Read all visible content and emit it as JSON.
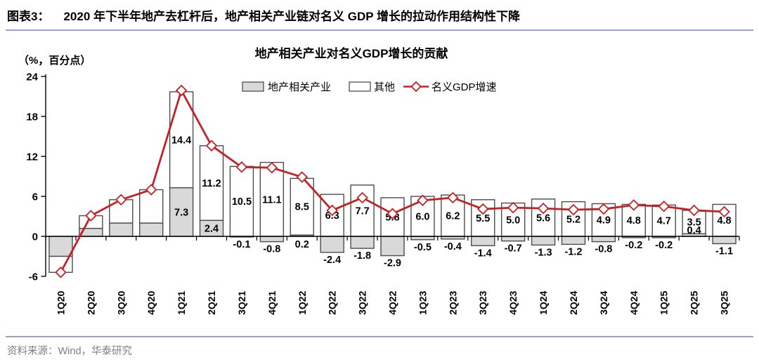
{
  "figure": {
    "label": "图表3：",
    "title": "2020 年下半年地产去杠杆后，地产相关产业链对名义 GDP 增长的拉动作用结构性下降"
  },
  "source_note": "资料来源：Wind，华泰研究",
  "colors": {
    "accent_red": "#c42127",
    "bar_gray_fill": "#d9d9d9",
    "bar_white_fill": "#ffffff",
    "bar_border": "#4d4d4d",
    "axis_color": "#000000",
    "divider_blue": "#91a5c8",
    "source_text_gray": "#7f7f7f"
  },
  "chart_data": {
    "type": "stacked-bar+line",
    "title": "地产相关产业对名义GDP增长的贡献",
    "unit_label": "（%，百分点）",
    "xlabel": "",
    "ylabel": "（%，百分点）",
    "ylim": [
      -6,
      24
    ],
    "yticks": [
      24,
      18,
      12,
      6,
      0,
      -6
    ],
    "grid": false,
    "legend_position": "top-center",
    "categories": [
      "1Q20",
      "2Q20",
      "3Q20",
      "4Q20",
      "1Q21",
      "2Q21",
      "3Q21",
      "4Q21",
      "1Q22",
      "2Q22",
      "3Q22",
      "4Q22",
      "1Q23",
      "2Q23",
      "3Q23",
      "4Q23",
      "1Q24",
      "2Q24",
      "3Q24",
      "4Q24",
      "1Q25",
      "2Q25",
      "3Q25"
    ],
    "series": [
      {
        "name": "地产相关产业",
        "type": "bar",
        "stack": true,
        "fill": "#d9d9d9",
        "values": [
          -3.0,
          1.2,
          2.0,
          2.0,
          7.3,
          2.4,
          -0.1,
          -0.8,
          0.2,
          -2.4,
          -1.8,
          -2.9,
          -0.5,
          -0.4,
          -1.4,
          -0.7,
          -1.3,
          -1.2,
          -0.8,
          -0.2,
          -0.2,
          0.4,
          -1.1
        ],
        "labels": [
          null,
          null,
          null,
          null,
          "7.3",
          "2.4",
          "-0.1",
          "-0.8",
          "0.2",
          "-2.4",
          "-1.8",
          "-2.9",
          "-0.5",
          "-0.4",
          "-1.4",
          "-0.7",
          "-1.3",
          "-1.2",
          "-0.8",
          "-0.2",
          "-0.2",
          "0.4",
          "-1.1"
        ]
      },
      {
        "name": "其他",
        "type": "bar",
        "stack": true,
        "fill": "#ffffff",
        "values": [
          -2.4,
          1.9,
          3.5,
          5.0,
          14.4,
          11.2,
          10.5,
          11.1,
          8.5,
          6.3,
          7.7,
          5.8,
          6.0,
          6.2,
          5.5,
          5.0,
          5.6,
          5.2,
          4.9,
          4.8,
          4.7,
          3.5,
          4.8
        ],
        "labels": [
          null,
          null,
          null,
          null,
          "14.4",
          "11.2",
          "10.5",
          "11.1",
          "8.5",
          "6.3",
          "7.7",
          "5.8",
          "6.0",
          "6.2",
          "5.5",
          "5.0",
          "5.6",
          "5.2",
          "4.9",
          "4.8",
          "4.7",
          "3.5",
          "4.8"
        ]
      },
      {
        "name": "名义GDP增速",
        "type": "line",
        "color": "#c42127",
        "marker": "open-diamond",
        "values": [
          -5.4,
          3.1,
          5.5,
          7.0,
          21.9,
          13.6,
          10.4,
          10.3,
          8.9,
          3.9,
          5.8,
          3.4,
          5.4,
          5.8,
          4.1,
          4.3,
          4.2,
          4.0,
          4.1,
          4.7,
          4.5,
          3.9,
          3.7
        ]
      }
    ]
  }
}
